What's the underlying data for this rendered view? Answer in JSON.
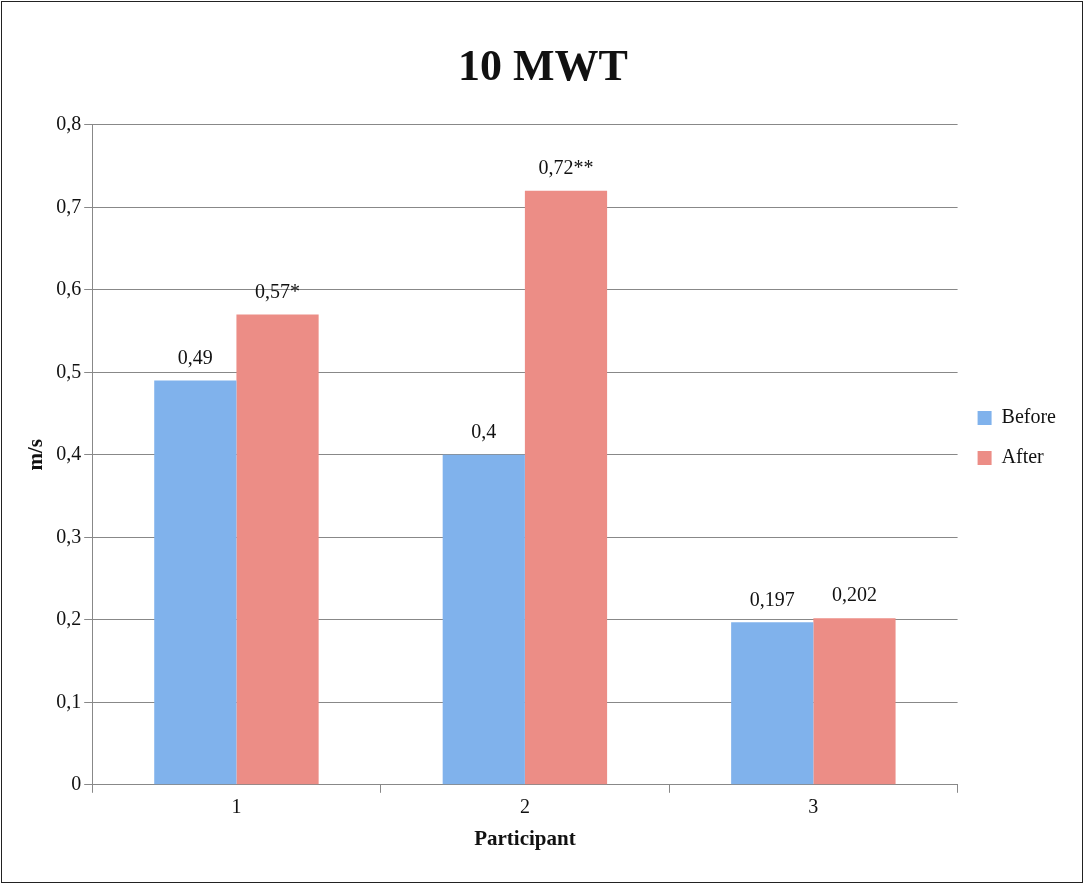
{
  "chart_data": {
    "type": "bar",
    "title": "10 MWT",
    "xlabel": "Participant",
    "ylabel": "m/s",
    "categories": [
      "1",
      "2",
      "3"
    ],
    "series": [
      {
        "name": "Before",
        "color": "#80b2ec",
        "values": [
          0.49,
          0.4,
          0.197
        ],
        "value_labels": [
          "0,49",
          "0,4",
          "0,197"
        ]
      },
      {
        "name": "After",
        "color": "#ec8d86",
        "values": [
          0.57,
          0.72,
          0.202
        ],
        "value_labels": [
          "0,57*",
          "0,72**",
          "0,202"
        ]
      }
    ],
    "ylim": [
      0,
      0.8
    ],
    "yticks": [
      0,
      {
        "value": 0.1,
        "label": "0,1"
      },
      {
        "value": 0.2,
        "label": "0,2"
      },
      {
        "value": 0.3,
        "label": "0,3"
      },
      {
        "value": 0.4,
        "label": "0,4"
      },
      {
        "value": 0.5,
        "label": "0,5"
      },
      {
        "value": 0.6,
        "label": "0,6"
      },
      {
        "value": 0.7,
        "label": "0,7"
      },
      {
        "value": 0.8,
        "label": "0,8"
      }
    ],
    "grid": "y",
    "legend": "right"
  }
}
